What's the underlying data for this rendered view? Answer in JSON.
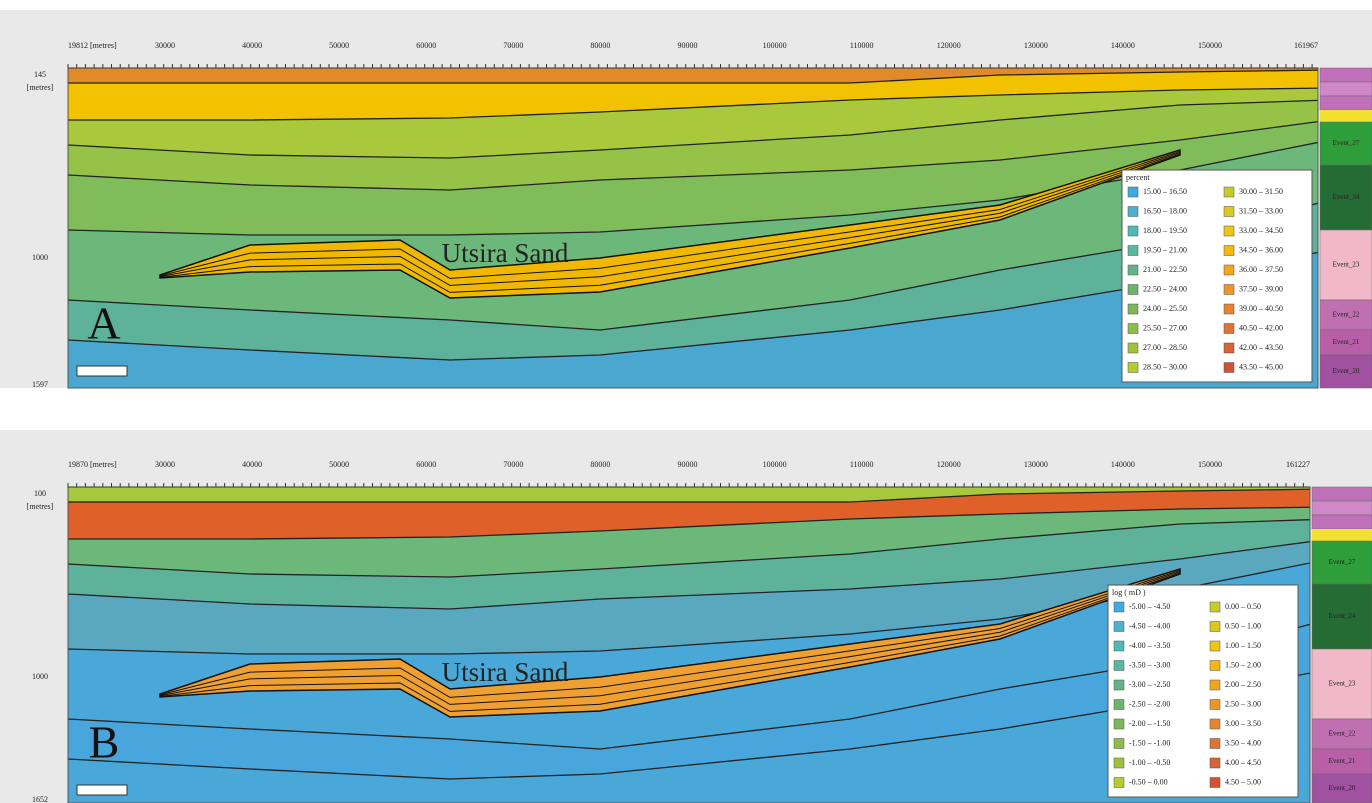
{
  "panels": [
    {
      "label": "A",
      "annotation": "Utsira Sand",
      "x_labels": [
        "19812 [metres]",
        "30000",
        "40000",
        "50000",
        "60000",
        "70000",
        "80000",
        "90000",
        "100000",
        "110000",
        "120000",
        "130000",
        "140000",
        "150000",
        "161967"
      ],
      "y_labels": [
        "145",
        "[metres]",
        "1000",
        "1597"
      ],
      "legend": {
        "title": "percent",
        "entries": [
          {
            "label": "15.00 – 16.50",
            "color": "#3fa9e0"
          },
          {
            "label": "16.50 – 18.00",
            "color": "#4cb0cf"
          },
          {
            "label": "18.00 – 19.50",
            "color": "#4fb8b8"
          },
          {
            "label": "19.50 – 21.00",
            "color": "#58b8a0"
          },
          {
            "label": "21.00 – 22.50",
            "color": "#62b487"
          },
          {
            "label": "22.50 – 24.00",
            "color": "#6cb46e"
          },
          {
            "label": "24.00 – 25.50",
            "color": "#7bb85a"
          },
          {
            "label": "25.50 – 27.00",
            "color": "#8cbd48"
          },
          {
            "label": "27.00 – 28.50",
            "color": "#9dc23c"
          },
          {
            "label": "28.50 – 30.00",
            "color": "#b4cb32"
          },
          {
            "label": "30.00 – 31.50",
            "color": "#c8cc2a"
          },
          {
            "label": "31.50 – 33.00",
            "color": "#dcc820"
          },
          {
            "label": "33.00 – 34.50",
            "color": "#eec516"
          },
          {
            "label": "34.50 – 36.00",
            "color": "#f5b80f"
          },
          {
            "label": "36.00 – 37.50",
            "color": "#f2a61e"
          },
          {
            "label": "37.50 – 39.00",
            "color": "#eb9628"
          },
          {
            "label": "39.00 – 40.50",
            "color": "#e58530"
          },
          {
            "label": "40.50 – 42.00",
            "color": "#de7434"
          },
          {
            "label": "42.00 – 43.50",
            "color": "#d86334"
          },
          {
            "label": "43.50 – 45.00",
            "color": "#d25232"
          }
        ]
      },
      "events": [
        "Event_27",
        "Event_24",
        "Event_23",
        "Event_22",
        "Event_21",
        "Event_20"
      ]
    },
    {
      "label": "B",
      "annotation": "Utsira Sand",
      "x_labels": [
        "19870 [metres]",
        "30000",
        "40000",
        "50000",
        "60000",
        "70000",
        "80000",
        "90000",
        "100000",
        "110000",
        "120000",
        "130000",
        "140000",
        "150000",
        "161227"
      ],
      "y_labels": [
        "100",
        "[metres]",
        "1000",
        "1652"
      ],
      "legend": {
        "title": "log ( mD )",
        "entries": [
          {
            "label": "-5.00 – -4.50",
            "color": "#3fa9e0"
          },
          {
            "label": "-4.50 – -4.00",
            "color": "#4cb0cf"
          },
          {
            "label": "-4.00 – -3.50",
            "color": "#4fb8b8"
          },
          {
            "label": "-3.50 – -3.00",
            "color": "#58b8a0"
          },
          {
            "label": "-3.00 – -2.50",
            "color": "#62b487"
          },
          {
            "label": "-2.50 – -2.00",
            "color": "#6cb46e"
          },
          {
            "label": "-2.00 – -1.50",
            "color": "#7bb85a"
          },
          {
            "label": "-1.50 – -1.00",
            "color": "#8cbd48"
          },
          {
            "label": "-1.00 – -0.50",
            "color": "#9dc23c"
          },
          {
            "label": "-0.50 – 0.00",
            "color": "#b4cb32"
          },
          {
            "label": "0.00 – 0.50",
            "color": "#c8cc2a"
          },
          {
            "label": "0.50 – 1.00",
            "color": "#dcc820"
          },
          {
            "label": "1.00 – 1.50",
            "color": "#eec516"
          },
          {
            "label": "1.50 – 2.00",
            "color": "#f5b80f"
          },
          {
            "label": "2.00 – 2.50",
            "color": "#f2a61e"
          },
          {
            "label": "2.50 – 3.00",
            "color": "#eb9628"
          },
          {
            "label": "3.00 – 3.50",
            "color": "#e58530"
          },
          {
            "label": "3.50 – 4.00",
            "color": "#de7434"
          },
          {
            "label": "4.00 – 4.50",
            "color": "#d86334"
          },
          {
            "label": "4.50 – 5.00",
            "color": "#d25232"
          }
        ]
      },
      "events": [
        "Event_27",
        "Event_24",
        "Event_23",
        "Event_22",
        "Event_21",
        "Event_20"
      ]
    }
  ]
}
